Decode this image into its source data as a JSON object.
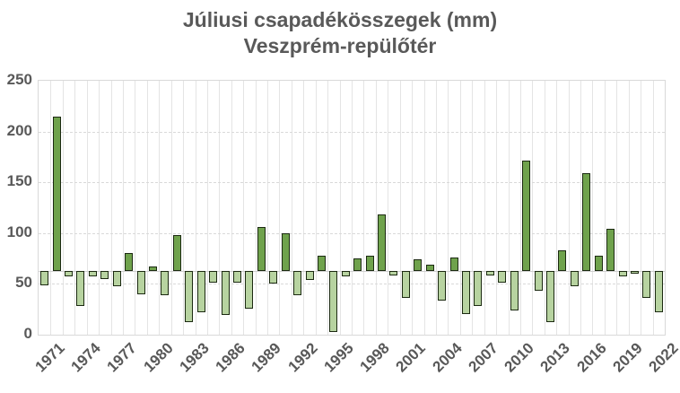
{
  "chart_data": {
    "type": "bar",
    "title": "Júliusi csapadékösszegek (mm)",
    "subtitle": "Veszprém-repülőtér",
    "xlabel": "",
    "ylabel": "",
    "x": [
      1971,
      1972,
      1973,
      1974,
      1975,
      1976,
      1977,
      1978,
      1979,
      1980,
      1981,
      1982,
      1983,
      1984,
      1985,
      1986,
      1987,
      1988,
      1989,
      1990,
      1991,
      1992,
      1993,
      1994,
      1995,
      1996,
      1997,
      1998,
      1999,
      2000,
      2001,
      2002,
      2003,
      2004,
      2005,
      2006,
      2007,
      2008,
      2009,
      2010,
      2011,
      2012,
      2013,
      2014,
      2015,
      2016,
      2017,
      2018,
      2019,
      2020,
      2021,
      2022
    ],
    "values": [
      49,
      215,
      57,
      28,
      57,
      55,
      48,
      80,
      40,
      67,
      39,
      98,
      12,
      22,
      51,
      19,
      51,
      26,
      106,
      50,
      100,
      39,
      54,
      78,
      3,
      57,
      75,
      78,
      118,
      58,
      36,
      74,
      69,
      34,
      76,
      20,
      28,
      58,
      51,
      24,
      171,
      43,
      12,
      83,
      48,
      159,
      78,
      104,
      57,
      60,
      36,
      22
    ],
    "baseline": 62.6,
    "baseline_note": "bars are drawn from the category-axis crossing value (~62.6 mm); values below it are filled light green, values above it medium green",
    "ylim": [
      0,
      250
    ],
    "yticks": [
      0,
      50,
      100,
      150,
      200,
      250
    ],
    "xticks": [
      "1971",
      "1974",
      "1977",
      "1980",
      "1983",
      "1986",
      "1989",
      "1992",
      "1995",
      "1998",
      "2001",
      "2004",
      "2007",
      "2010",
      "2013",
      "2016",
      "2019",
      "2022"
    ],
    "xtick_rotation_deg": 45,
    "grid": {
      "horizontal": "dashed",
      "vertical": "per-category solid"
    },
    "legend": "none",
    "colors": {
      "bar_above_baseline": "#6fa24c",
      "bar_below_baseline": "#b7d3a0",
      "bar_border": "#1c2a12",
      "gridline": "#d9d9d9",
      "vertical_gridline": "#e4e4e4",
      "text": "#595959",
      "background": "#ffffff"
    }
  }
}
